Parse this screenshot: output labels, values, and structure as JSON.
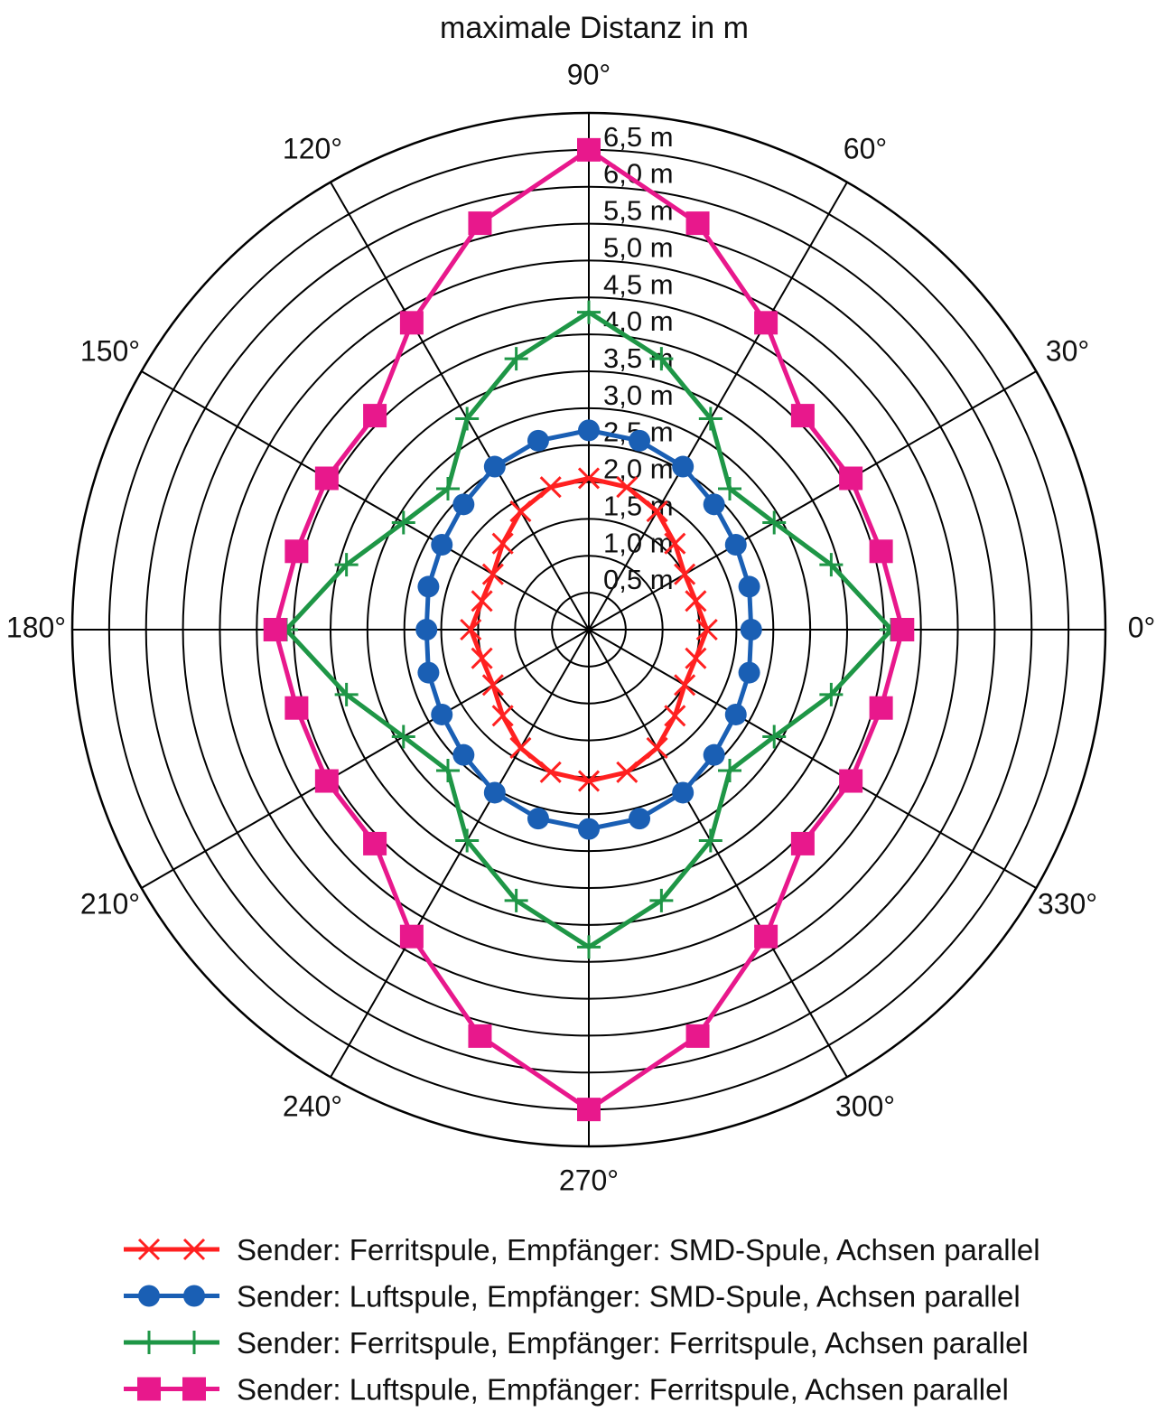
{
  "chart_data": {
    "type": "polar",
    "title": "maximale Distanz in m",
    "theta": [
      0,
      15,
      30,
      45,
      60,
      75,
      90,
      105,
      120,
      135,
      150,
      165,
      180,
      195,
      210,
      225,
      240,
      255,
      270,
      285,
      300,
      315,
      330,
      345
    ],
    "rlim": [
      0,
      7
    ],
    "rticks": [
      {
        "value": 0.5,
        "label": "0,5 m"
      },
      {
        "value": 1.0,
        "label": "1,0 m"
      },
      {
        "value": 1.5,
        "label": "1,5 m"
      },
      {
        "value": 2.0,
        "label": "2,0 m"
      },
      {
        "value": 2.5,
        "label": "2,5 m"
      },
      {
        "value": 3.0,
        "label": "3,0 m"
      },
      {
        "value": 3.5,
        "label": "3,5 m"
      },
      {
        "value": 4.0,
        "label": "4,0 m"
      },
      {
        "value": 4.5,
        "label": "4,5 m"
      },
      {
        "value": 5.0,
        "label": "5,0 m"
      },
      {
        "value": 5.5,
        "label": "5,5 m"
      },
      {
        "value": 6.0,
        "label": "6,0 m"
      },
      {
        "value": 6.5,
        "label": "6,5 m"
      }
    ],
    "thetaticks": [
      {
        "value": 0,
        "label": "0°"
      },
      {
        "value": 30,
        "label": "30°"
      },
      {
        "value": 60,
        "label": "60°"
      },
      {
        "value": 90,
        "label": "90°"
      },
      {
        "value": 120,
        "label": "120°"
      },
      {
        "value": 150,
        "label": "150°"
      },
      {
        "value": 180,
        "label": "180°"
      },
      {
        "value": 210,
        "label": "210°"
      },
      {
        "value": 240,
        "label": "240°"
      },
      {
        "value": 270,
        "label": "270°"
      },
      {
        "value": 300,
        "label": "300°"
      },
      {
        "value": 330,
        "label": "330°"
      }
    ],
    "series": [
      {
        "name": "Sender: Ferritspule, Empfänger: SMD-Spule, Achsen parallel",
        "color": "#ff2020",
        "marker": "x",
        "values": [
          1.6,
          1.5,
          1.5,
          1.65,
          1.85,
          2.0,
          2.05,
          2.0,
          1.85,
          1.65,
          1.5,
          1.5,
          1.6,
          1.5,
          1.5,
          1.65,
          1.85,
          2.0,
          2.05,
          2.0,
          1.85,
          1.65,
          1.5,
          1.5
        ]
      },
      {
        "name": "Sender: Luftspule, Empfänger: SMD-Spule, Achsen parallel",
        "color": "#1a5fb4",
        "marker": "circle",
        "values": [
          2.2,
          2.25,
          2.3,
          2.4,
          2.55,
          2.65,
          2.7,
          2.65,
          2.55,
          2.4,
          2.3,
          2.25,
          2.2,
          2.25,
          2.3,
          2.4,
          2.55,
          2.65,
          2.7,
          2.65,
          2.55,
          2.4,
          2.3,
          2.25
        ]
      },
      {
        "name": "Sender: Ferritspule, Empfänger: Ferritspule, Achsen parallel",
        "color": "#1e9646",
        "marker": "plus",
        "values": [
          4.1,
          3.4,
          2.9,
          2.7,
          3.3,
          3.8,
          4.3,
          3.8,
          3.3,
          2.7,
          2.9,
          3.4,
          4.1,
          3.4,
          2.9,
          2.7,
          3.3,
          3.8,
          4.3,
          3.8,
          3.3,
          2.7,
          2.9,
          3.4
        ]
      },
      {
        "name": "Sender: Luftspule, Empfänger: Ferritspule, Achsen parallel",
        "color": "#e8188c",
        "marker": "square",
        "values": [
          4.25,
          4.1,
          4.1,
          4.1,
          4.8,
          5.7,
          6.5,
          5.7,
          4.8,
          4.1,
          4.1,
          4.1,
          4.25,
          4.1,
          4.1,
          4.1,
          4.8,
          5.7,
          6.5,
          5.7,
          4.8,
          4.1,
          4.1,
          4.1
        ]
      }
    ]
  }
}
